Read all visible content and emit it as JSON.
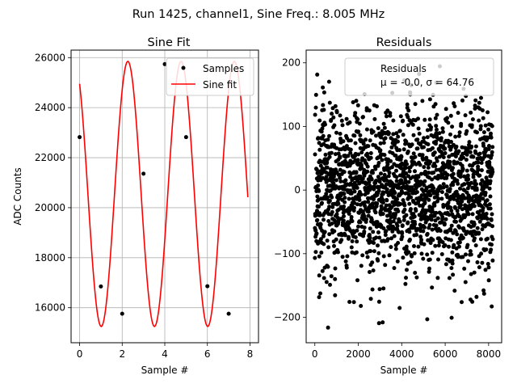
{
  "figure": {
    "suptitle": "Run 1425, channel1, Sine Freq.: 8.005 MHz"
  },
  "chart_data": [
    {
      "type": "line",
      "title": "Sine Fit",
      "xlabel": "Sample #",
      "ylabel": "ADC Counts",
      "xlim": [
        -0.4,
        8.4
      ],
      "ylim": [
        14600,
        26300
      ],
      "xticks": [
        0,
        2,
        4,
        6,
        8
      ],
      "yticks": [
        16000,
        18000,
        20000,
        22000,
        24000,
        26000
      ],
      "grid": true,
      "legend_position": "top-right",
      "samples": {
        "name": "Samples",
        "color": "#000000",
        "x": [
          0,
          1,
          2,
          3,
          4,
          5,
          6,
          7
        ],
        "y": [
          22820,
          16850,
          15760,
          21360,
          25740,
          22820,
          16860,
          15760
        ]
      },
      "fit": {
        "name": "Sine fit",
        "color": "#ff0000",
        "x_range": [
          0,
          7.9
        ],
        "offset": 20550,
        "amplitude": 5300,
        "frequency_per_sample": 0.4,
        "phase": 0.59
      }
    },
    {
      "type": "scatter",
      "title": "Residuals",
      "xlabel": "Sample #",
      "ylabel": "",
      "xlim": [
        -400,
        8600
      ],
      "ylim": [
        -240,
        220
      ],
      "xticks": [
        0,
        2000,
        4000,
        6000,
        8000
      ],
      "yticks": [
        -200,
        -100,
        0,
        100,
        200
      ],
      "grid": false,
      "legend_position": "top-right",
      "legend_lines": [
        "Residuals",
        "μ = -0.0, σ = 64.76"
      ],
      "series": [
        {
          "name": "Residuals",
          "color": "#000000",
          "n_points": 8192,
          "mean": -0.0,
          "std": 64.76
        }
      ]
    }
  ]
}
